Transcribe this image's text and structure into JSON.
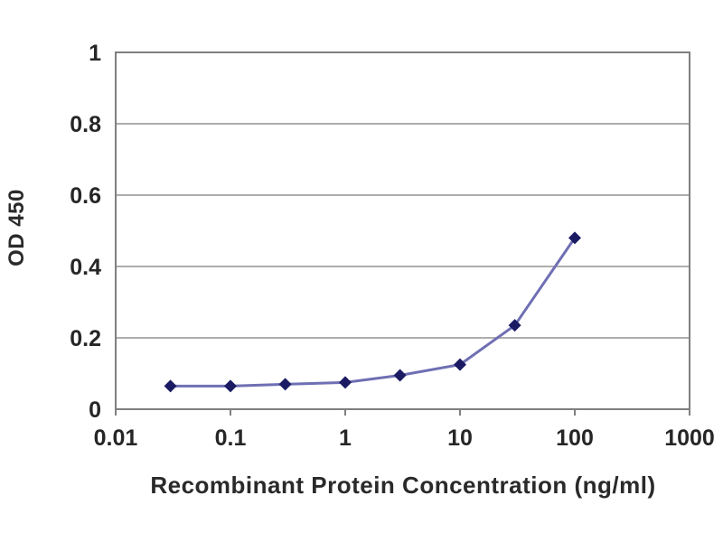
{
  "chart_data": {
    "type": "line",
    "title": "",
    "xlabel": "Recombinant Protein Concentration (ng/ml)",
    "ylabel": "OD 450",
    "x_scale": "log",
    "xlim": [
      0.01,
      1000
    ],
    "ylim": [
      0,
      1
    ],
    "x_ticks": [
      {
        "v": 0.01,
        "label": "0.01"
      },
      {
        "v": 0.1,
        "label": "0.1"
      },
      {
        "v": 1,
        "label": "1"
      },
      {
        "v": 10,
        "label": "10"
      },
      {
        "v": 100,
        "label": "100"
      },
      {
        "v": 1000,
        "label": "1000"
      }
    ],
    "y_ticks": [
      {
        "v": 0,
        "label": "0"
      },
      {
        "v": 0.2,
        "label": "0.2"
      },
      {
        "v": 0.4,
        "label": "0.4"
      },
      {
        "v": 0.6,
        "label": "0.6"
      },
      {
        "v": 0.8,
        "label": "0.8"
      },
      {
        "v": 1,
        "label": "1"
      }
    ],
    "grid": "horizontal",
    "legend": "none",
    "series": [
      {
        "name": "OD 450",
        "marker": "diamond",
        "x": [
          0.03,
          0.1,
          0.3,
          1,
          3,
          10,
          30,
          100
        ],
        "y": [
          0.065,
          0.065,
          0.07,
          0.075,
          0.095,
          0.125,
          0.235,
          0.48
        ]
      }
    ],
    "colors": {
      "line": "#6f6fb4",
      "marker": "#1b1b64",
      "grid": "#adadad",
      "axis": "#7f7f7f",
      "text": "#262626",
      "background": "#ffffff"
    }
  }
}
